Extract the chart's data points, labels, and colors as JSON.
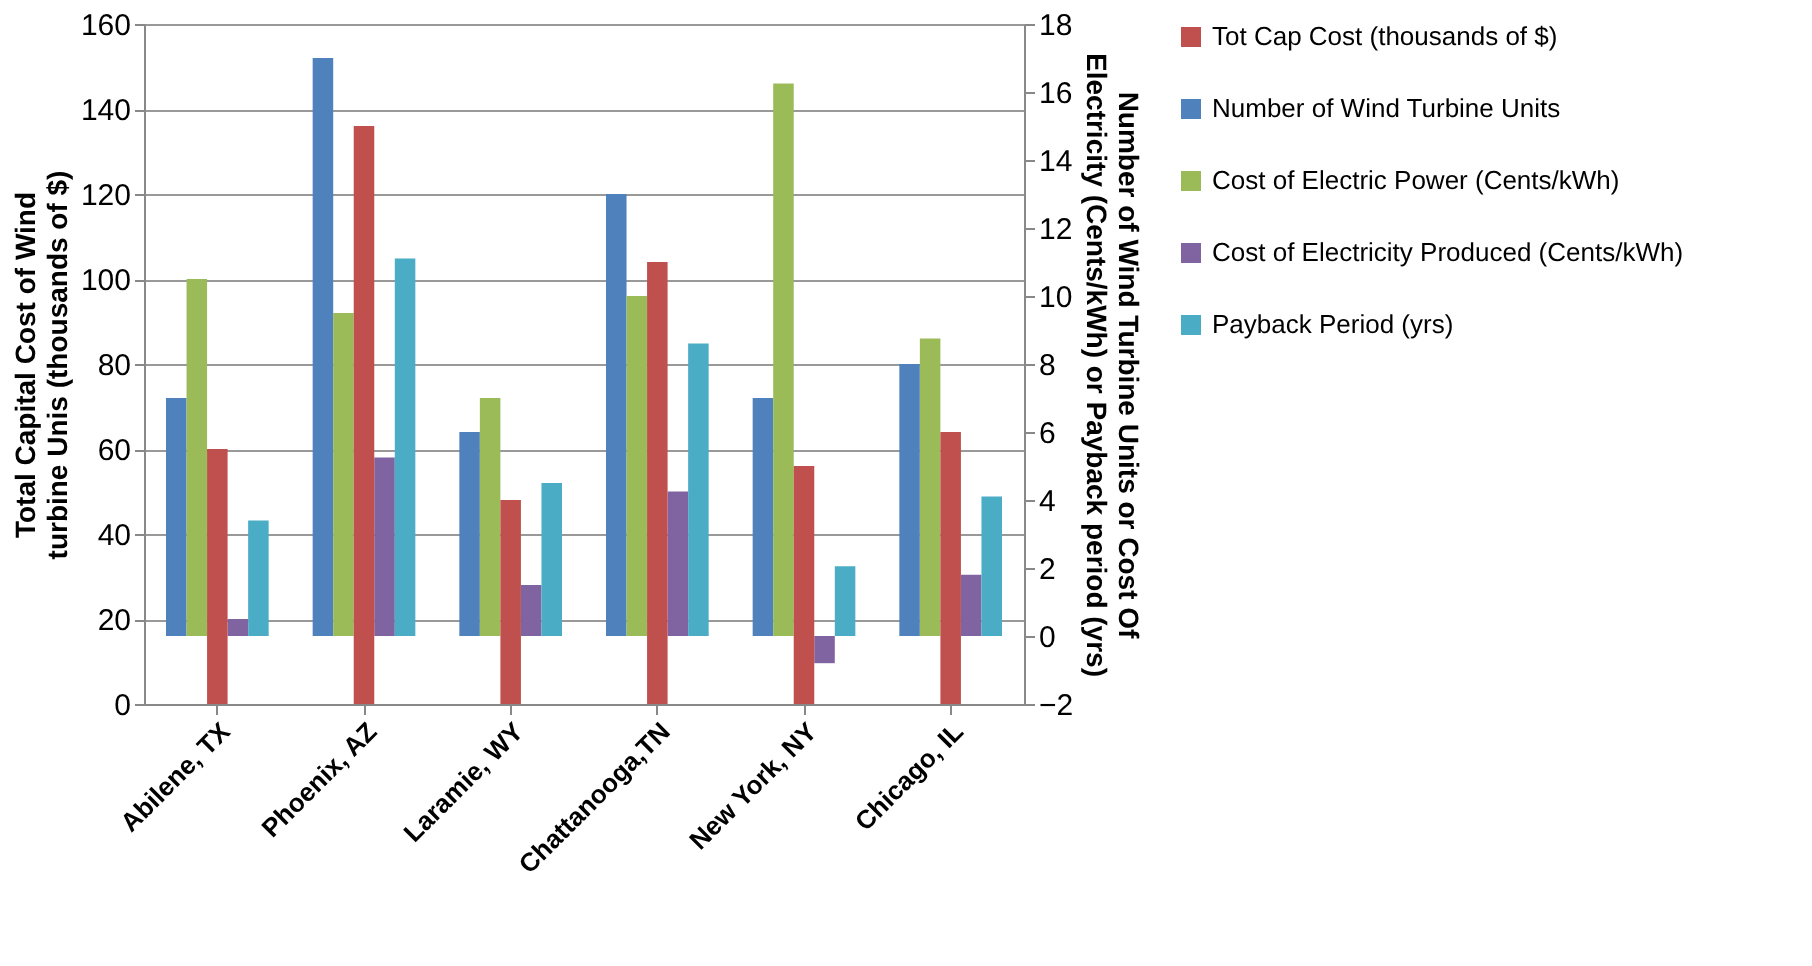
{
  "chart_data": {
    "type": "bar",
    "categories": [
      "Abilene, TX",
      "Phoenix, AZ",
      "Laramie, WY",
      "Chattanooga,TN",
      "New York, NY",
      "Chicago, IL"
    ],
    "series": [
      {
        "name": "Tot Cap Cost (thousands of $)",
        "color": "#c0504d",
        "values": [
          60,
          136,
          48,
          104,
          56,
          64
        ]
      },
      {
        "name": "Number of Wind Turbine Units",
        "color": "#4f81bd",
        "axis": "y2",
        "values": [
          7,
          17,
          6,
          13,
          7,
          8
        ]
      },
      {
        "name": "Cost of Electric Power (Cents/kWh)",
        "color": "#9bbb59",
        "axis": "y2",
        "values": [
          10.5,
          9.5,
          7,
          10,
          16.25,
          8.75
        ]
      },
      {
        "name": "Cost of Electricity Produced (Cents/kWh)",
        "color": "#8064a2",
        "axis": "y2",
        "values": [
          0.5,
          5.25,
          1.5,
          4.25,
          -0.8,
          1.8
        ]
      },
      {
        "name": "Payback Period (yrs)",
        "color": "#4bacc6",
        "axis": "y2",
        "values": [
          3.4,
          11.1,
          4.5,
          8.6,
          2.05,
          4.1
        ]
      }
    ],
    "ylabel": "Total Capital Cost of Wind turbine Unis (thousands of $)",
    "y2label": "Number of Wind Turbine Units or Cost Of Electricity (Cents/kWh) or Payback period (yrs)",
    "ylim": [
      0,
      160
    ],
    "yticks": [
      0,
      20,
      40,
      60,
      80,
      100,
      120,
      140,
      160
    ],
    "y2lim": [
      -2,
      18
    ],
    "y2ticks": [
      -2,
      0,
      2,
      4,
      6,
      8,
      10,
      12,
      14,
      16,
      18
    ],
    "grid": "y",
    "legend": "right"
  }
}
